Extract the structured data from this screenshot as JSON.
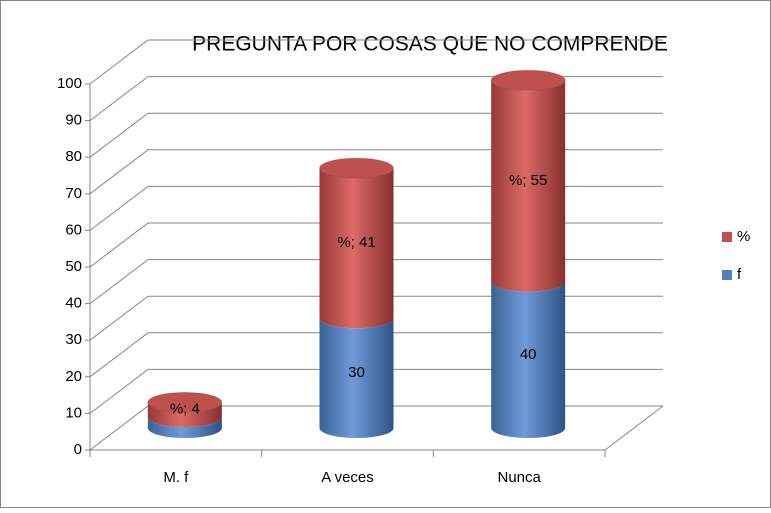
{
  "chart_data": {
    "type": "bar3d_stacked",
    "title": "PREGUNTA  POR  COSAS  QUE  NO COMPRENDE",
    "categories": [
      "M. f",
      "A veces",
      "Nunca"
    ],
    "series": [
      {
        "name": "f",
        "color": "#4f81bd",
        "values": [
          3,
          30,
          40
        ]
      },
      {
        "name": "%",
        "color": "#c0504d",
        "values": [
          4,
          41,
          55
        ],
        "value_labels": [
          "%; 4",
          "%; 41",
          "%; 55"
        ]
      }
    ],
    "ylim": [
      0,
      100
    ],
    "yticks": [
      0,
      10,
      20,
      30,
      40,
      50,
      60,
      70,
      80,
      90,
      100
    ],
    "grid": true
  }
}
